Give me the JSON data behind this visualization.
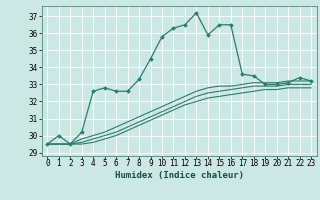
{
  "xlabel": "Humidex (Indice chaleur)",
  "bg_color": "#cce8e4",
  "grid_color": "#ffffff",
  "line_color": "#2d7a6e",
  "xlim": [
    -0.5,
    23.5
  ],
  "ylim": [
    28.8,
    37.6
  ],
  "yticks": [
    29,
    30,
    31,
    32,
    33,
    34,
    35,
    36,
    37
  ],
  "xticks": [
    0,
    1,
    2,
    3,
    4,
    5,
    6,
    7,
    8,
    9,
    10,
    11,
    12,
    13,
    14,
    15,
    16,
    17,
    18,
    19,
    20,
    21,
    22,
    23
  ],
  "line1_x": [
    0,
    1,
    2,
    3,
    4,
    5,
    6,
    7,
    8,
    9,
    10,
    11,
    12,
    13,
    14,
    15,
    16,
    17,
    18,
    19,
    20,
    21,
    22,
    23
  ],
  "line1_y": [
    29.5,
    30.0,
    29.5,
    30.2,
    32.6,
    32.8,
    32.6,
    32.6,
    33.3,
    34.5,
    35.8,
    36.3,
    36.5,
    37.2,
    35.9,
    36.5,
    36.5,
    33.6,
    33.5,
    33.0,
    33.0,
    33.1,
    33.4,
    33.2
  ],
  "line3_x": [
    0,
    1,
    2,
    3,
    4,
    5,
    6,
    7,
    8,
    9,
    10,
    11,
    12,
    13,
    14,
    15,
    16,
    17,
    18,
    19,
    20,
    21,
    22,
    23
  ],
  "line3_y": [
    29.5,
    29.5,
    29.5,
    29.8,
    30.0,
    30.2,
    30.5,
    30.8,
    31.1,
    31.4,
    31.7,
    32.0,
    32.3,
    32.6,
    32.8,
    32.9,
    32.9,
    33.0,
    33.1,
    33.1,
    33.1,
    33.2,
    33.2,
    33.2
  ],
  "line4_x": [
    0,
    1,
    2,
    3,
    4,
    5,
    6,
    7,
    8,
    9,
    10,
    11,
    12,
    13,
    14,
    15,
    16,
    17,
    18,
    19,
    20,
    21,
    22,
    23
  ],
  "line4_y": [
    29.5,
    29.5,
    29.5,
    29.6,
    29.8,
    30.0,
    30.2,
    30.5,
    30.8,
    31.1,
    31.4,
    31.7,
    32.0,
    32.3,
    32.5,
    32.6,
    32.7,
    32.8,
    32.9,
    32.9,
    32.9,
    33.0,
    33.0,
    33.0
  ],
  "line5_x": [
    0,
    1,
    2,
    3,
    4,
    5,
    6,
    7,
    8,
    9,
    10,
    11,
    12,
    13,
    14,
    15,
    16,
    17,
    18,
    19,
    20,
    21,
    22,
    23
  ],
  "line5_y": [
    29.5,
    29.5,
    29.5,
    29.5,
    29.6,
    29.8,
    30.0,
    30.3,
    30.6,
    30.9,
    31.2,
    31.5,
    31.8,
    32.0,
    32.2,
    32.3,
    32.4,
    32.5,
    32.6,
    32.7,
    32.7,
    32.8,
    32.8,
    32.8
  ],
  "tick_fontsize": 5.5,
  "xlabel_fontsize": 6.5
}
